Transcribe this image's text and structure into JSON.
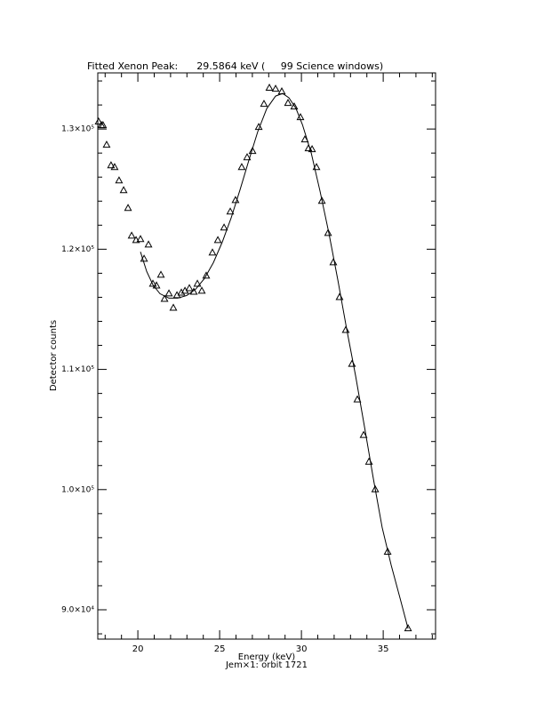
{
  "chart_data": {
    "type": "scatter",
    "title": "Fitted Xenon Peak:      29.5864 keV (     99 Science windows)",
    "x_label": "Energy (keV)",
    "subtitle": "Jem×1: orbit 1721",
    "y_label": "Detector counts",
    "xlim": [
      17.55,
      38.2
    ],
    "ylim": [
      87560,
      134670
    ],
    "xticks": [
      20,
      25,
      30,
      35
    ],
    "x_minor_ticks": [
      18,
      19,
      21,
      22,
      23,
      24,
      26,
      27,
      28,
      29,
      31,
      32,
      33,
      34,
      36,
      37,
      38
    ],
    "yticks": [
      {
        "value": 90000,
        "label": "9.0×10⁴"
      },
      {
        "value": 100000,
        "label": "1.0×10⁵"
      },
      {
        "value": 110000,
        "label": "1.1×10⁵"
      },
      {
        "value": 120000,
        "label": "1.2×10⁵"
      },
      {
        "value": 130000,
        "label": "1.3×10⁵"
      }
    ],
    "y_minor_ticks": [
      88000,
      92000,
      94000,
      96000,
      98000,
      102000,
      104000,
      106000,
      108000,
      112000,
      114000,
      116000,
      118000,
      122000,
      124000,
      126000,
      128000,
      132000,
      134000
    ],
    "color": "#000000",
    "series": [
      {
        "style": "markers",
        "marker": "triangle",
        "x": [
          17.6,
          17.77,
          17.87,
          18.09,
          18.36,
          18.58,
          18.85,
          19.13,
          19.4,
          19.62,
          19.89,
          20.16,
          20.38,
          20.65,
          20.92,
          21.14,
          21.41,
          21.63,
          21.9,
          22.17,
          22.39,
          22.66,
          22.88,
          23.15,
          23.42,
          23.64,
          23.91,
          24.18,
          24.56,
          24.89,
          25.27,
          25.65,
          25.97,
          26.35,
          26.68,
          27.01,
          27.39,
          27.71,
          28.04,
          28.42,
          28.8,
          29.18,
          29.56,
          29.94,
          30.21,
          30.43,
          30.65,
          30.92,
          31.25,
          31.63,
          31.95,
          32.33,
          32.71,
          33.09,
          33.42,
          33.8,
          34.13,
          34.51,
          35.27,
          36.52
        ],
        "values": [
          130600,
          130300,
          130300,
          128670,
          126960,
          126810,
          125700,
          124890,
          123410,
          121110,
          120740,
          120820,
          119190,
          120370,
          117110,
          116960,
          117850,
          115850,
          116300,
          115110,
          116150,
          116370,
          116520,
          116740,
          116440,
          117110,
          116520,
          117780,
          119700,
          120740,
          121780,
          123110,
          124070,
          126810,
          127630,
          128150,
          130150,
          132070,
          133410,
          133330,
          133110,
          132150,
          131850,
          130960,
          129110,
          128370,
          128300,
          126810,
          124000,
          121330,
          118890,
          116000,
          113260,
          110440,
          107480,
          104520,
          102300,
          100000,
          94810,
          88440
        ]
      },
      {
        "style": "line",
        "x": [
          20.16,
          20.54,
          20.92,
          21.35,
          21.9,
          22.44,
          22.99,
          23.53,
          24.07,
          24.62,
          25.16,
          25.7,
          26.25,
          26.79,
          27.33,
          27.88,
          28.42,
          28.85,
          29.24,
          29.67,
          30.06,
          30.6,
          31.14,
          31.68,
          32.23,
          32.77,
          33.31,
          33.86,
          34.4,
          34.94,
          35.49,
          36.03,
          36.52
        ],
        "values": [
          119780,
          118150,
          117040,
          116300,
          115930,
          115930,
          116150,
          116670,
          117560,
          118890,
          120590,
          122590,
          124960,
          127410,
          129780,
          131700,
          132740,
          132960,
          132590,
          131700,
          130370,
          128000,
          124810,
          121330,
          117410,
          113330,
          109480,
          105190,
          100890,
          96820,
          93700,
          90960,
          88440
        ]
      }
    ]
  }
}
